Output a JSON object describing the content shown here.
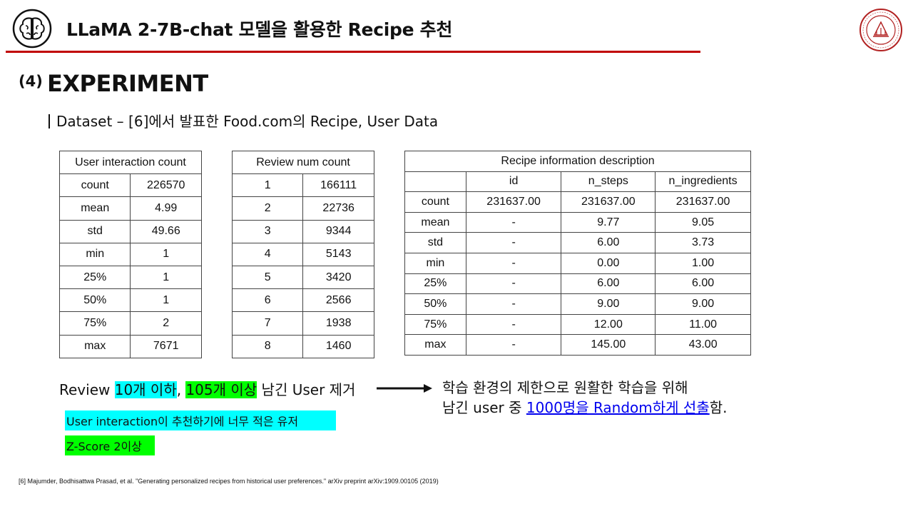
{
  "header": {
    "title": "LLaMA 2-7B-chat 모델을 활용한 Recipe 추천",
    "logo_icon": "brain-icon",
    "seal_icon": "university-seal-icon",
    "rule_color": "#c00000"
  },
  "section": {
    "number": "(4)",
    "title": "EXPERIMENT",
    "subtitle": "Dataset – [6]에서 발표한 Food.com의 Recipe, User Data"
  },
  "table_user": {
    "header": "User interaction count",
    "rows": [
      [
        "count",
        "226570"
      ],
      [
        "mean",
        "4.99"
      ],
      [
        "std",
        "49.66"
      ],
      [
        "min",
        "1"
      ],
      [
        "25%",
        "1"
      ],
      [
        "50%",
        "1"
      ],
      [
        "75%",
        "2"
      ],
      [
        "max",
        "7671"
      ]
    ]
  },
  "table_review": {
    "header": "Review num count",
    "rows": [
      [
        "1",
        "166111"
      ],
      [
        "2",
        "22736"
      ],
      [
        "3",
        "9344"
      ],
      [
        "4",
        "5143"
      ],
      [
        "5",
        "3420"
      ],
      [
        "6",
        "2566"
      ],
      [
        "7",
        "1938"
      ],
      [
        "8",
        "1460"
      ]
    ]
  },
  "table_recipe": {
    "header": "Recipe information description",
    "columns": [
      "",
      "id",
      "n_steps",
      "n_ingredients"
    ],
    "rows": [
      [
        "count",
        "231637.00",
        "231637.00",
        "231637.00"
      ],
      [
        "mean",
        "-",
        "9.77",
        "9.05"
      ],
      [
        "std",
        "-",
        "6.00",
        "3.73"
      ],
      [
        "min",
        "-",
        "0.00",
        "1.00"
      ],
      [
        "25%",
        "-",
        "6.00",
        "6.00"
      ],
      [
        "50%",
        "-",
        "9.00",
        "9.00"
      ],
      [
        "75%",
        "-",
        "12.00",
        "11.00"
      ],
      [
        "max",
        "-",
        "145.00",
        "43.00"
      ]
    ]
  },
  "note": {
    "prefix": "Review ",
    "hl1": "10개 이하",
    "mid": ", ",
    "hl2": "105개 이상",
    "suffix": " 남긴 User 제거",
    "hl1_color": "#00ffff",
    "hl2_color": "#00ff00"
  },
  "right_text": {
    "line1": "학습 환경의 제한으로 원활한 학습을 위해",
    "line2_prefix": "남긴 user 중 ",
    "line2_link": "1000명을 Random하게 선출",
    "line2_suffix": "함."
  },
  "labels": {
    "cyan": "User interaction이 추천하기에 너무 적은 유저",
    "green": "Z-Score 2이상"
  },
  "reference": "[6] Majumder,  Bodhisattwa Prasad, et al. \"Generating personalized  recipes from historical user preferences.\" arXiv preprint arXiv:1909.00105 (2019)"
}
